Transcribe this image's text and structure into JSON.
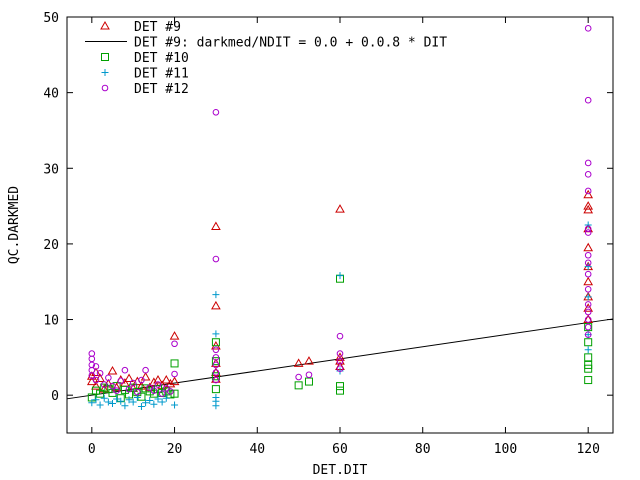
{
  "chart_data": {
    "type": "scatter",
    "title": "",
    "xlabel": "DET.DIT",
    "ylabel": "QC.DARKMED",
    "xlim": [
      -6,
      126
    ],
    "ylim": [
      -5,
      50
    ],
    "xticks": [
      0,
      20,
      40,
      60,
      80,
      100,
      120
    ],
    "yticks": [
      0,
      10,
      20,
      30,
      40,
      50
    ],
    "legend_position": "top-left",
    "grid": false,
    "fit_line": {
      "name": "DET #9: darkmed/NDIT = 0.0 + 0.0.8 * DIT",
      "color": "#000000",
      "intercept": 0.0,
      "slope": 0.08
    },
    "series": [
      {
        "name": "DET #9",
        "marker": "triangle",
        "color": "#cc0000",
        "points": [
          [
            0,
            2.5
          ],
          [
            0,
            1.8
          ],
          [
            1,
            1.2
          ],
          [
            1,
            3.0
          ],
          [
            2,
            2.2
          ],
          [
            3,
            0.8
          ],
          [
            4,
            1.5
          ],
          [
            5,
            3.2
          ],
          [
            6,
            1.0
          ],
          [
            7,
            2.0
          ],
          [
            8,
            1.6
          ],
          [
            9,
            2.2
          ],
          [
            10,
            0.9
          ],
          [
            11,
            1.8
          ],
          [
            12,
            1.2
          ],
          [
            13,
            2.4
          ],
          [
            14,
            1.0
          ],
          [
            15,
            1.7
          ],
          [
            16,
            2.0
          ],
          [
            17,
            1.3
          ],
          [
            18,
            2.0
          ],
          [
            19,
            1.5
          ],
          [
            20,
            7.8
          ],
          [
            20,
            1.8
          ],
          [
            30,
            22.3
          ],
          [
            30,
            11.8
          ],
          [
            30,
            6.5
          ],
          [
            30,
            4.2
          ],
          [
            30,
            3.0
          ],
          [
            30,
            2.1
          ],
          [
            50,
            4.2
          ],
          [
            52.5,
            4.5
          ],
          [
            60,
            24.6
          ],
          [
            60,
            5.0
          ],
          [
            60,
            4.5
          ],
          [
            60,
            3.8
          ],
          [
            120,
            26.5
          ],
          [
            120,
            25.0
          ],
          [
            120,
            24.5
          ],
          [
            120,
            22.0
          ],
          [
            120,
            19.5
          ],
          [
            120,
            17.0
          ],
          [
            120,
            15.0
          ],
          [
            120,
            13.0
          ],
          [
            120,
            11.5
          ],
          [
            120,
            10.0
          ]
        ]
      },
      {
        "name": "DET #10",
        "marker": "square",
        "color": "#00a000",
        "points": [
          [
            0,
            -0.3
          ],
          [
            1,
            0.6
          ],
          [
            2,
            0.2
          ],
          [
            3,
            1.0
          ],
          [
            4,
            0.8
          ],
          [
            5,
            0.3
          ],
          [
            6,
            1.2
          ],
          [
            7,
            -0.4
          ],
          [
            8,
            0.7
          ],
          [
            9,
            0.1
          ],
          [
            10,
            1.0
          ],
          [
            11,
            0.4
          ],
          [
            12,
            -0.2
          ],
          [
            13,
            0.9
          ],
          [
            14,
            0.5
          ],
          [
            15,
            0.2
          ],
          [
            16,
            0.8
          ],
          [
            17,
            0.3
          ],
          [
            18,
            0.5
          ],
          [
            19,
            0.1
          ],
          [
            20,
            4.2
          ],
          [
            20,
            0.2
          ],
          [
            30,
            7.0
          ],
          [
            30,
            4.5
          ],
          [
            30,
            2.5
          ],
          [
            30,
            0.8
          ],
          [
            50,
            1.3
          ],
          [
            52.5,
            1.8
          ],
          [
            60,
            15.4
          ],
          [
            60,
            1.2
          ],
          [
            60,
            0.6
          ],
          [
            120,
            9.0
          ],
          [
            120,
            7.0
          ],
          [
            120,
            5.0
          ],
          [
            120,
            4.0
          ],
          [
            120,
            3.5
          ],
          [
            120,
            2.0
          ]
        ]
      },
      {
        "name": "DET #11",
        "marker": "plus",
        "color": "#0099cc",
        "points": [
          [
            0,
            -1.0
          ],
          [
            1,
            -0.6
          ],
          [
            2,
            -1.3
          ],
          [
            3,
            -0.4
          ],
          [
            4,
            -0.9
          ],
          [
            5,
            -1.1
          ],
          [
            6,
            -0.5
          ],
          [
            7,
            -0.8
          ],
          [
            8,
            -1.4
          ],
          [
            9,
            -0.6
          ],
          [
            10,
            -0.9
          ],
          [
            11,
            -0.3
          ],
          [
            12,
            -1.5
          ],
          [
            13,
            -1.0
          ],
          [
            14,
            -0.7
          ],
          [
            15,
            -1.2
          ],
          [
            16,
            -0.5
          ],
          [
            17,
            -0.9
          ],
          [
            18,
            -0.4
          ],
          [
            20,
            -1.3
          ],
          [
            30,
            13.3
          ],
          [
            30,
            8.1
          ],
          [
            30,
            -0.3
          ],
          [
            30,
            -0.8
          ],
          [
            30,
            -1.4
          ],
          [
            60,
            15.8
          ],
          [
            60,
            3.2
          ],
          [
            120,
            22.5
          ],
          [
            120,
            17.0
          ],
          [
            120,
            13.0
          ],
          [
            120,
            8.0
          ],
          [
            120,
            6.0
          ]
        ]
      },
      {
        "name": "DET #12",
        "marker": "circle",
        "color": "#aa00cc",
        "points": [
          [
            0,
            5.5
          ],
          [
            0,
            4.8
          ],
          [
            0,
            4.0
          ],
          [
            0,
            3.3
          ],
          [
            0,
            2.6
          ],
          [
            1,
            3.8
          ],
          [
            1,
            2.0
          ],
          [
            2,
            2.9
          ],
          [
            3,
            1.4
          ],
          [
            4,
            2.3
          ],
          [
            5,
            1.2
          ],
          [
            6,
            0.6
          ],
          [
            7,
            1.9
          ],
          [
            8,
            3.3
          ],
          [
            9,
            0.8
          ],
          [
            10,
            1.6
          ],
          [
            11,
            0.4
          ],
          [
            12,
            2.0
          ],
          [
            13,
            3.3
          ],
          [
            14,
            1.0
          ],
          [
            15,
            0.6
          ],
          [
            16,
            1.4
          ],
          [
            17,
            0.2
          ],
          [
            18,
            0.9
          ],
          [
            19,
            0.5
          ],
          [
            20,
            6.8
          ],
          [
            20,
            2.8
          ],
          [
            30,
            37.4
          ],
          [
            30,
            18.0
          ],
          [
            30,
            6.0
          ],
          [
            30,
            5.0
          ],
          [
            30,
            4.0
          ],
          [
            30,
            3.0
          ],
          [
            30,
            2.0
          ],
          [
            50,
            2.4
          ],
          [
            52.5,
            2.7
          ],
          [
            60,
            7.8
          ],
          [
            60,
            5.5
          ],
          [
            60,
            4.5
          ],
          [
            60,
            3.5
          ],
          [
            120,
            48.5
          ],
          [
            120,
            39.0
          ],
          [
            120,
            30.7
          ],
          [
            120,
            29.2
          ],
          [
            120,
            27.0
          ],
          [
            120,
            22.0
          ],
          [
            120,
            21.5
          ],
          [
            120,
            18.5
          ],
          [
            120,
            17.5
          ],
          [
            120,
            16.0
          ],
          [
            120,
            14.0
          ],
          [
            120,
            12.0
          ],
          [
            120,
            11.0
          ],
          [
            120,
            10.0
          ],
          [
            120,
            9.0
          ],
          [
            120,
            8.0
          ]
        ]
      }
    ]
  }
}
